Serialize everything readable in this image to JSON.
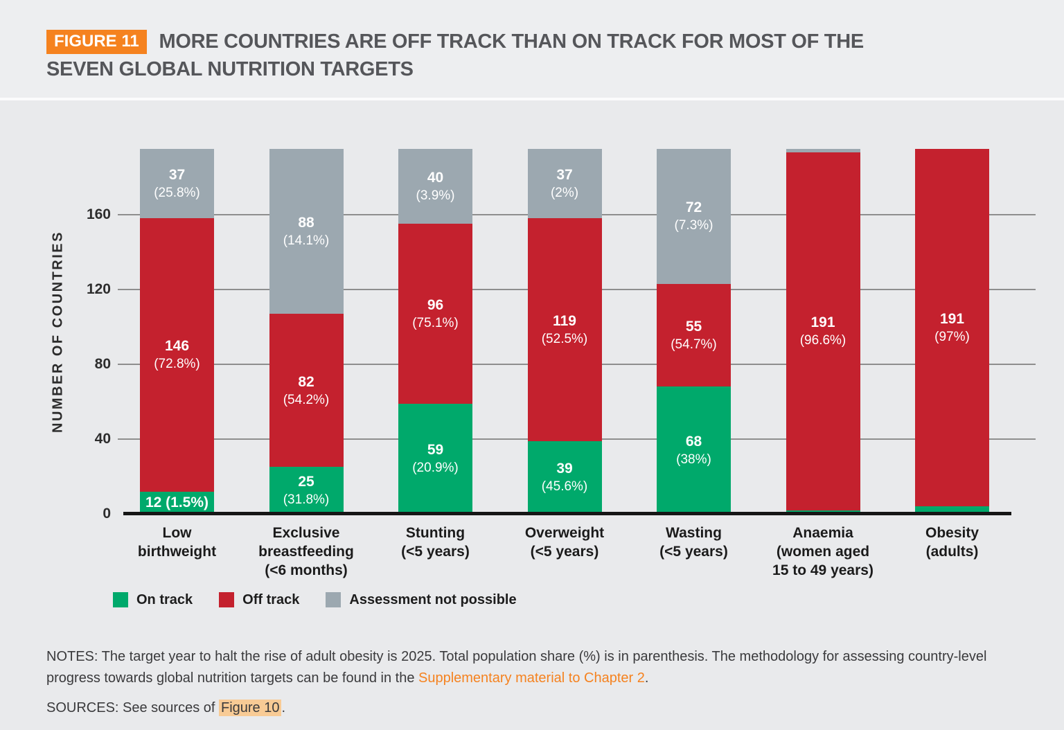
{
  "figure": {
    "tag": "FIGURE 11",
    "title": "MORE COUNTRIES ARE OFF TRACK THAN ON TRACK FOR MOST OF THE SEVEN GLOBAL NUTRITION TARGETS"
  },
  "colors": {
    "on_track": "#00A96B",
    "off_track": "#C4212E",
    "not_possible": "#9CA8B0",
    "accent_orange": "#F5821F",
    "highlight_peach": "#F8CB95"
  },
  "chart_data": {
    "type": "bar",
    "stacked": true,
    "ylabel": "NUMBER OF COUNTRIES",
    "yticks": [
      0,
      40,
      80,
      120,
      160
    ],
    "ylim": [
      0,
      195
    ],
    "grid": true,
    "legend_position": "bottom",
    "categories": [
      "Low birthweight",
      "Exclusive breastfeeding (<6 months)",
      "Stunting (<5 years)",
      "Overweight (<5 years)",
      "Wasting (<5 years)",
      "Anaemia (women aged 15 to 49 years)",
      "Obesity (adults)"
    ],
    "category_label_lines": [
      [
        "Low",
        "birthweight"
      ],
      [
        "Exclusive",
        "breastfeeding",
        "(<6 months)"
      ],
      [
        "Stunting",
        "(<5 years)"
      ],
      [
        "Overweight",
        "(<5 years)"
      ],
      [
        "Wasting",
        "(<5 years)"
      ],
      [
        "Anaemia",
        "(women aged",
        "15 to 49 years)"
      ],
      [
        "Obesity",
        "(adults)"
      ]
    ],
    "series": [
      {
        "name": "On track",
        "color_key": "on_track",
        "values": [
          12,
          25,
          59,
          39,
          68,
          2,
          4
        ],
        "labels": [
          [
            "12 (1.5%)"
          ],
          [
            "25",
            "(31.8%)"
          ],
          [
            "59",
            "(20.9%)"
          ],
          [
            "39",
            "(45.6%)"
          ],
          [
            "68",
            "(38%)"
          ],
          [],
          []
        ]
      },
      {
        "name": "Off track",
        "color_key": "off_track",
        "values": [
          146,
          82,
          96,
          119,
          55,
          191,
          191
        ],
        "labels": [
          [
            "146",
            "(72.8%)"
          ],
          [
            "82",
            "(54.2%)"
          ],
          [
            "96",
            "(75.1%)"
          ],
          [
            "119",
            "(52.5%)"
          ],
          [
            "55",
            "(54.7%)"
          ],
          [
            "191",
            "(96.6%)"
          ],
          [
            "191",
            "(97%)"
          ]
        ]
      },
      {
        "name": "Assessment not possible",
        "color_key": "not_possible",
        "values": [
          37,
          88,
          40,
          37,
          72,
          2,
          0
        ],
        "labels": [
          [
            "37",
            "(25.8%)"
          ],
          [
            "88",
            "(14.1%)"
          ],
          [
            "40",
            "(3.9%)"
          ],
          [
            "37",
            "(2%)"
          ],
          [
            "72",
            "(7.3%)"
          ],
          [],
          []
        ]
      }
    ],
    "legend": [
      "On track",
      "Off track",
      "Assessment not possible"
    ]
  },
  "notes": {
    "text_before_link": "NOTES: The target year to halt the rise of adult obesity is 2025. Total population share (%) is in parenthesis. The methodology for assessing country-level progress towards global nutrition targets can be found in the ",
    "link": "Supplementary material to Chapter 2",
    "text_after_link": "."
  },
  "sources": {
    "text_before_link": "SOURCES: See sources of ",
    "link": "Figure 10",
    "text_after_link": "."
  }
}
